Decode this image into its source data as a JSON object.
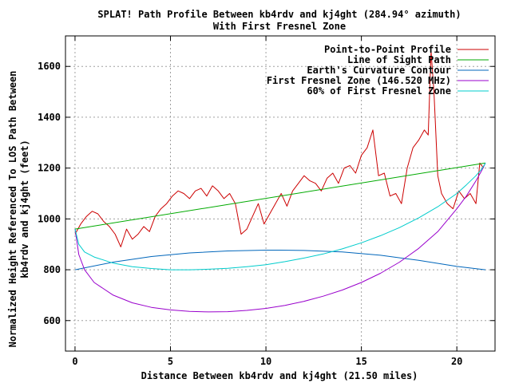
{
  "chart_data": {
    "type": "line",
    "title": "SPLAT! Path Profile Between kb4rdv and kj4ght (284.94° azimuth)",
    "subtitle": "With First Fresnel Zone",
    "xlabel": "Distance Between kb4rdv and kj4ght (21.50 miles)",
    "ylabel_line1": "Normalized Height Referenced To LOS Path Between",
    "ylabel_line2": "kb4rdv and kj4ght (feet)",
    "xlim": [
      -0.5,
      22
    ],
    "ylim": [
      480,
      1720
    ],
    "xticks": [
      0,
      5,
      10,
      15,
      20
    ],
    "xtick_labels": [
      "0",
      "5",
      "10",
      "15",
      "20"
    ],
    "yticks": [
      600,
      800,
      1000,
      1200,
      1400,
      1600
    ],
    "ytick_labels": [
      "600",
      "800",
      "1000",
      "1200",
      "1400",
      "1600"
    ],
    "grid": true,
    "legend_position": "top-right",
    "series": [
      {
        "name": "Point-to-Point Profile",
        "color": "#cc0000",
        "x": [
          0,
          0.3,
          0.6,
          0.9,
          1.2,
          1.5,
          1.8,
          2.1,
          2.4,
          2.7,
          3.0,
          3.3,
          3.6,
          3.9,
          4.2,
          4.5,
          4.8,
          5.1,
          5.4,
          5.7,
          6.0,
          6.3,
          6.6,
          6.9,
          7.2,
          7.5,
          7.8,
          8.1,
          8.4,
          8.7,
          9.0,
          9.3,
          9.6,
          9.9,
          10.2,
          10.5,
          10.8,
          11.1,
          11.4,
          11.7,
          12.0,
          12.3,
          12.6,
          12.9,
          13.2,
          13.5,
          13.8,
          14.1,
          14.4,
          14.7,
          15.0,
          15.3,
          15.6,
          15.9,
          16.2,
          16.5,
          16.8,
          17.1,
          17.4,
          17.7,
          18.0,
          18.3,
          18.5,
          18.65,
          18.8,
          19.0,
          19.2,
          19.5,
          19.8,
          20.1,
          20.4,
          20.7,
          21.0,
          21.2,
          21.4
        ],
        "values": [
          940,
          980,
          1010,
          1030,
          1020,
          990,
          970,
          940,
          890,
          960,
          920,
          940,
          970,
          950,
          1010,
          1040,
          1060,
          1090,
          1110,
          1100,
          1080,
          1110,
          1120,
          1090,
          1130,
          1110,
          1080,
          1100,
          1060,
          940,
          960,
          1010,
          1060,
          980,
          1020,
          1060,
          1100,
          1050,
          1110,
          1140,
          1170,
          1150,
          1140,
          1110,
          1160,
          1180,
          1140,
          1200,
          1210,
          1180,
          1250,
          1280,
          1350,
          1170,
          1180,
          1090,
          1100,
          1060,
          1200,
          1280,
          1310,
          1350,
          1330,
          1660,
          1500,
          1170,
          1100,
          1060,
          1040,
          1110,
          1080,
          1100,
          1060,
          1220,
          1200
        ]
      },
      {
        "name": "Line of Sight Path",
        "color": "#00aa00",
        "x": [
          0,
          21.5
        ],
        "values": [
          960,
          1220
        ]
      },
      {
        "name": "Earth's Curvature Contour",
        "color": "#0066bb",
        "x": [
          0,
          2,
          4,
          6,
          8,
          10,
          10.75,
          12,
          14,
          16,
          18,
          20,
          21.5
        ],
        "values": [
          800,
          830,
          852,
          866,
          874,
          877,
          877,
          876,
          870,
          857,
          837,
          813,
          800
        ]
      },
      {
        "name": "First Fresnel Zone (146.520 MHz)",
        "color": "#9900cc",
        "x": [
          0,
          0.2,
          0.5,
          1,
          2,
          3,
          4,
          5,
          6,
          7,
          8,
          9,
          10,
          11,
          12,
          13,
          14,
          15,
          16,
          17,
          18,
          19,
          20,
          20.5,
          21,
          21.3,
          21.5
        ],
        "values": [
          960,
          860,
          800,
          750,
          700,
          670,
          652,
          642,
          636,
          634,
          635,
          640,
          648,
          660,
          676,
          696,
          720,
          750,
          786,
          830,
          884,
          950,
          1040,
          1090,
          1150,
          1190,
          1220
        ]
      },
      {
        "name": "60% of First Fresnel Zone",
        "color": "#00cccc",
        "x": [
          0,
          0.2,
          0.5,
          1,
          2,
          3,
          4,
          5,
          6,
          7,
          8,
          9,
          10,
          11,
          12,
          13,
          14,
          15,
          16,
          17,
          18,
          19,
          20,
          20.5,
          21,
          21.3,
          21.5
        ],
        "values": [
          960,
          900,
          870,
          850,
          826,
          812,
          805,
          800,
          800,
          802,
          806,
          812,
          820,
          832,
          846,
          862,
          882,
          906,
          934,
          966,
          1004,
          1048,
          1100,
          1134,
          1170,
          1196,
          1220
        ]
      }
    ]
  }
}
